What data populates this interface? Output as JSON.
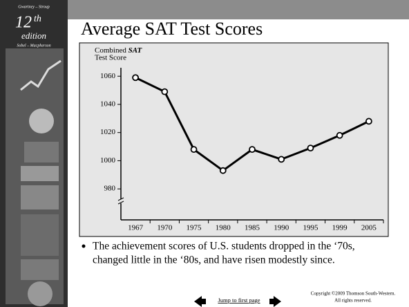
{
  "sidebar": {
    "authors_top": "Gwartney – Stroup",
    "edition_number": "12",
    "edition_suffix": "th",
    "edition_word": "edition",
    "authors_bottom": "Sobel – Macpherson"
  },
  "chart_data": {
    "type": "line",
    "title": "Average SAT Test Scores",
    "ylabel_prefix": "Combined",
    "ylabel_emphasis": "SAT",
    "ylabel_line2": "Test Score",
    "categories": [
      "1967",
      "1970",
      "1975",
      "1980",
      "1985",
      "1990",
      "1995",
      "1999",
      "2005"
    ],
    "values": [
      1059,
      1049,
      1008,
      993,
      1008,
      1001,
      1009,
      1018,
      1028
    ],
    "color": "#000000",
    "ylim": [
      958,
      1066
    ],
    "yticks": [
      980,
      1000,
      1020,
      1040,
      1060
    ],
    "grid": false,
    "axis_break": true
  },
  "bullet": {
    "line1": "The achievement scores of U.S. students dropped in the ‘70s,",
    "line2": "changed little in the ‘80s, and have risen modestly since."
  },
  "footer": {
    "link": "Jump to first page",
    "copyright1": "Copyright ©2009  Thomson South-Western.",
    "copyright2": "All rights reserved."
  }
}
